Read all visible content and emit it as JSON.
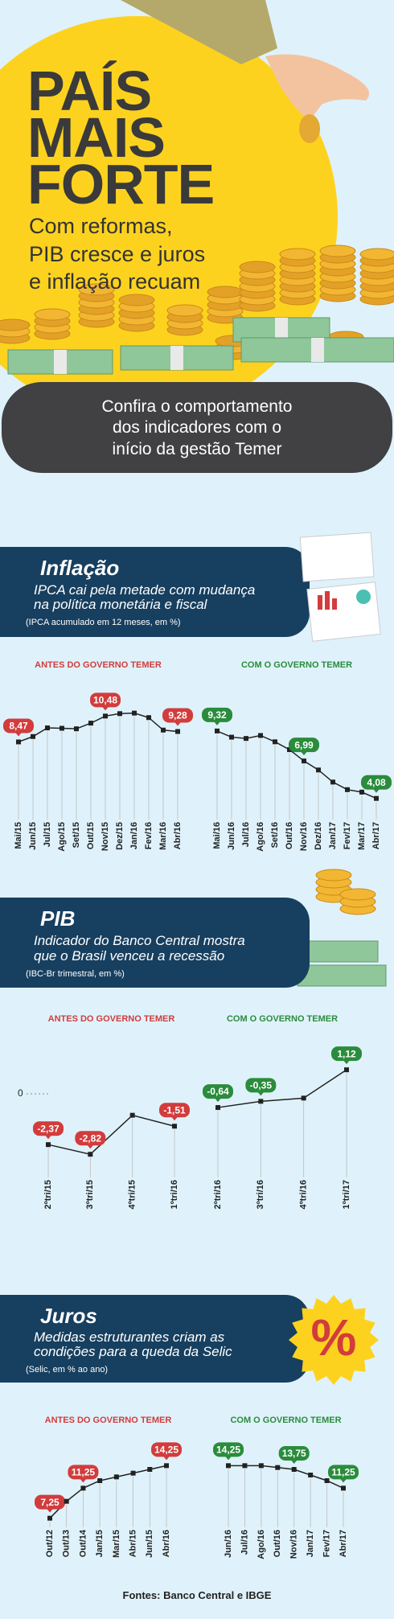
{
  "header": {
    "title_lines": [
      "PAÍS",
      "MAIS",
      "FORTE"
    ],
    "subtitle_lines": [
      "Com reformas,",
      "PIB cresce e juros",
      "e inflação recuam"
    ],
    "banner_lines": [
      "Confira o comportamento",
      "dos indicadores com o",
      "início da gestão Temer"
    ]
  },
  "sections": [
    {
      "title": "Inflação",
      "subtitle_lines": [
        "IPCA cai pela metade com mudança",
        "na política monetária e fiscal"
      ],
      "note": "(IPCA acumulado em 12 meses, em %)"
    },
    {
      "title": "PIB",
      "subtitle_lines": [
        "Indicador do Banco Central mostra",
        "que o Brasil venceu a recessão"
      ],
      "note": "(IBC-Br trimestral, em %)"
    },
    {
      "title": "Juros",
      "subtitle_lines": [
        "Medidas estruturantes criam as",
        "condições para a queda da Selic"
      ],
      "note": "(Selic, em % ao ano)",
      "badge": "%"
    }
  ],
  "chart_data": [
    {
      "type": "line",
      "title": "ANTES DO GOVERNO TEMER",
      "color": "#d23c3c",
      "categories": [
        "Mai/15",
        "Jun/15",
        "Jul/15",
        "Ago/15",
        "Set/15",
        "Out/15",
        "Nov/15",
        "Dez/15",
        "Jan/16",
        "Fev/16",
        "Mar/16",
        "Abr/16"
      ],
      "values": [
        8.47,
        8.89,
        9.56,
        9.53,
        9.49,
        9.93,
        10.48,
        10.67,
        10.71,
        10.36,
        9.39,
        9.28
      ],
      "value_labels": [
        "8,47",
        null,
        null,
        null,
        null,
        null,
        "10,48",
        null,
        null,
        null,
        null,
        "9,28"
      ],
      "ylim": [
        3,
        11.5
      ]
    },
    {
      "type": "line",
      "title": "COM O GOVERNO TEMER",
      "color": "#2a8c3c",
      "categories": [
        "Mai/16",
        "Jun/16",
        "Jul/16",
        "Ago/16",
        "Set/16",
        "Out/16",
        "Nov/16",
        "Dez/16",
        "Jan/17",
        "Fev/17",
        "Mar/17",
        "Abr/17"
      ],
      "values": [
        9.32,
        8.84,
        8.74,
        8.97,
        8.48,
        7.87,
        6.99,
        6.29,
        5.35,
        4.76,
        4.57,
        4.08
      ],
      "value_labels": [
        "9,32",
        null,
        null,
        null,
        null,
        null,
        "6,99",
        null,
        null,
        null,
        null,
        "4,08"
      ],
      "ylim": [
        3,
        11.5
      ]
    },
    {
      "type": "line",
      "title": "ANTES DO GOVERNO TEMER",
      "color": "#d23c3c",
      "categories": [
        "2ºtri/15",
        "3ºtri/15",
        "4ºtri/15",
        "1ºtri/16"
      ],
      "values": [
        -2.37,
        -2.82,
        -1.0,
        -1.51
      ],
      "value_labels": [
        "-2,37",
        "-2,82",
        null,
        "-1,51"
      ],
      "ylim": [
        -3,
        1.5
      ],
      "yticks": [
        0
      ]
    },
    {
      "type": "line",
      "title": "COM O GOVERNO TEMER",
      "color": "#2a8c3c",
      "categories": [
        "2ºtri/16",
        "3ºtri/16",
        "4ºtri/16",
        "1ºtri/17"
      ],
      "values": [
        -0.64,
        -0.35,
        -0.2,
        1.12
      ],
      "value_labels": [
        "-0,64",
        "-0,35",
        null,
        "1,12"
      ],
      "ylim": [
        -3,
        1.5
      ]
    },
    {
      "type": "line",
      "title": "ANTES DO GOVERNO TEMER",
      "color": "#d23c3c",
      "categories": [
        "Out/12",
        "Out/13",
        "Out/14",
        "Jan/15",
        "Mar/15",
        "Abr/15",
        "Jun/15",
        "Abr/16"
      ],
      "values": [
        7.25,
        9.5,
        11.25,
        12.25,
        12.75,
        13.25,
        13.75,
        14.25
      ],
      "value_labels": [
        "7,25",
        null,
        "11,25",
        null,
        null,
        null,
        null,
        "14,25"
      ],
      "ylim": [
        7,
        14.5
      ]
    },
    {
      "type": "line",
      "title": "COM O GOVERNO TEMER",
      "color": "#2a8c3c",
      "categories": [
        "Jun/16",
        "Jul/16",
        "Ago/16",
        "Out/16",
        "Nov/16",
        "Jan/17",
        "Fev/17",
        "Abr/17"
      ],
      "values": [
        14.25,
        14.25,
        14.25,
        14.0,
        13.75,
        13.0,
        12.25,
        11.25
      ],
      "value_labels": [
        "14,25",
        null,
        null,
        null,
        "13,75",
        null,
        null,
        "11,25"
      ],
      "ylim": [
        7,
        14.5
      ]
    }
  ],
  "footer": {
    "source": "Fontes: Banco Central e IBGE"
  }
}
